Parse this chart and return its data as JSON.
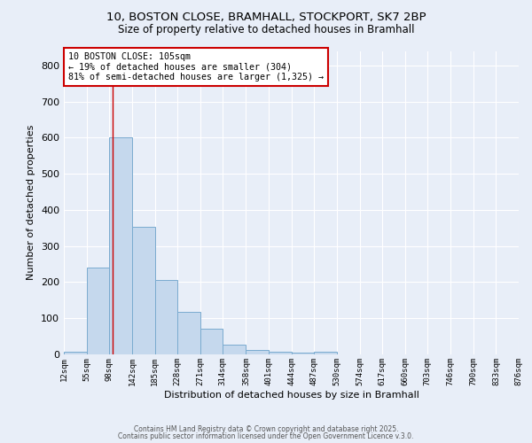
{
  "title_line1": "10, BOSTON CLOSE, BRAMHALL, STOCKPORT, SK7 2BP",
  "title_line2": "Size of property relative to detached houses in Bramhall",
  "xlabel": "Distribution of detached houses by size in Bramhall",
  "ylabel": "Number of detached properties",
  "bar_left_edges": [
    12,
    55,
    98,
    142,
    185,
    228,
    271,
    314,
    358,
    401,
    444,
    487,
    530,
    574,
    617,
    660,
    703,
    746,
    790,
    833
  ],
  "bar_heights": [
    8,
    240,
    600,
    352,
    207,
    117,
    72,
    27,
    13,
    8,
    5,
    8,
    0,
    0,
    0,
    0,
    0,
    0,
    0,
    0
  ],
  "bin_width": 43,
  "tick_labels": [
    "12sqm",
    "55sqm",
    "98sqm",
    "142sqm",
    "185sqm",
    "228sqm",
    "271sqm",
    "314sqm",
    "358sqm",
    "401sqm",
    "444sqm",
    "487sqm",
    "530sqm",
    "574sqm",
    "617sqm",
    "660sqm",
    "703sqm",
    "746sqm",
    "790sqm",
    "833sqm",
    "876sqm"
  ],
  "bar_color": "#c5d8ed",
  "bar_edge_color": "#7aabcf",
  "vline_x": 105,
  "ylim": [
    0,
    840
  ],
  "yticks": [
    0,
    100,
    200,
    300,
    400,
    500,
    600,
    700,
    800
  ],
  "annotation_text": "10 BOSTON CLOSE: 105sqm\n← 19% of detached houses are smaller (304)\n81% of semi-detached houses are larger (1,325) →",
  "annotation_box_color": "#ffffff",
  "annotation_box_edge_color": "#cc0000",
  "footer_line1": "Contains HM Land Registry data © Crown copyright and database right 2025.",
  "footer_line2": "Contains public sector information licensed under the Open Government Licence v.3.0.",
  "background_color": "#e8eef8",
  "plot_bg_color": "#e8eef8",
  "grid_color": "#ffffff"
}
